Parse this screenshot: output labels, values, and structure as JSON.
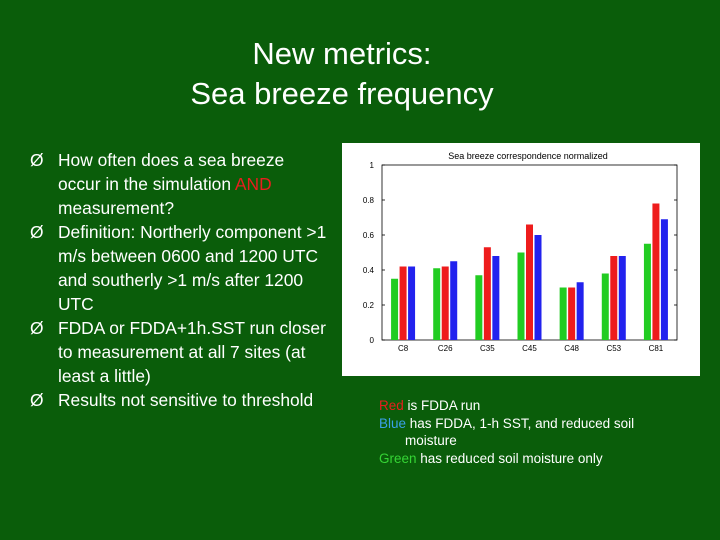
{
  "slide": {
    "title_line1": "New metrics:",
    "title_line2": "Sea breeze frequency"
  },
  "bullets": [
    {
      "marker": "Ø",
      "text_before": "How often does a sea breeze occur in the simulation ",
      "highlight": "AND",
      "text_after": " measurement?"
    },
    {
      "marker": "Ø",
      "text": "Definition:  Northerly component >1 m/s between 0600 and 1200 UTC and southerly >1 m/s after 1200 UTC"
    },
    {
      "marker": "Ø",
      "text": "FDDA or FDDA+1h.SST run closer to measurement at all 7 sites (at least a little)"
    },
    {
      "marker": "Ø",
      "text": "Results not sensitive to threshold"
    }
  ],
  "legend": {
    "red_word": "Red",
    "red_rest": " is FDDA run",
    "blue_word": "Blue",
    "blue_rest": " has FDDA, 1-h SST, and reduced soil",
    "blue_cont": "moisture",
    "green_word": "Green",
    "green_rest": " has reduced soil moisture only"
  },
  "colors": {
    "background": "#0a5d0a",
    "highlight": "#e81e1e",
    "red": "#e81e1e",
    "blue": "#3aa0e8",
    "green": "#35d535"
  },
  "chart_data": {
    "type": "bar",
    "title": "Sea breeze correspondence normalized",
    "categories": [
      "C8",
      "C26",
      "C35",
      "C45",
      "C48",
      "C53",
      "C81"
    ],
    "series": [
      {
        "color": "#22cc22",
        "values": [
          0.35,
          0.41,
          0.37,
          0.5,
          0.3,
          0.38,
          0.55
        ]
      },
      {
        "color": "#ee1c1c",
        "values": [
          0.42,
          0.42,
          0.53,
          0.66,
          0.3,
          0.48,
          0.78
        ]
      },
      {
        "color": "#2222ee",
        "values": [
          0.42,
          0.45,
          0.48,
          0.6,
          0.33,
          0.48,
          0.69
        ]
      }
    ],
    "ylim": [
      0,
      1
    ],
    "yticks": [
      "0",
      "0.2",
      "0.4",
      "0.6",
      "0.8",
      "1"
    ],
    "xlabel": "",
    "ylabel": "",
    "grid": false
  }
}
